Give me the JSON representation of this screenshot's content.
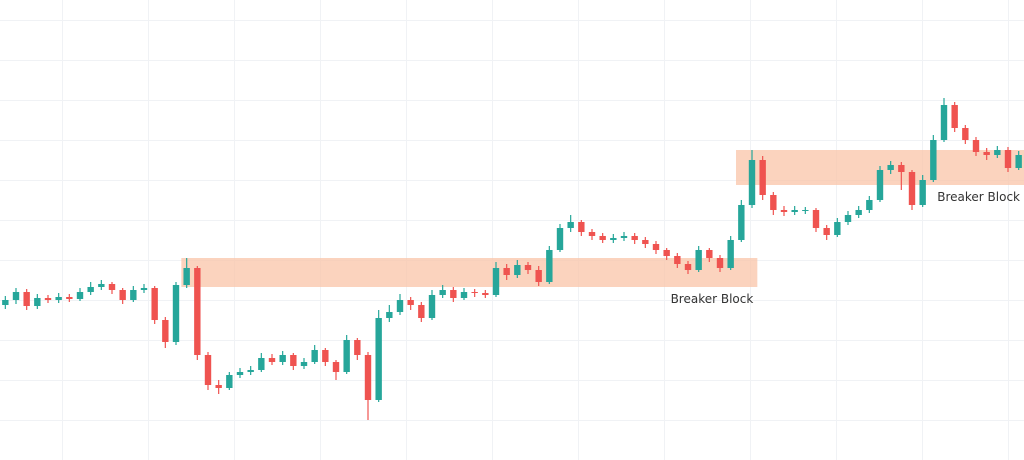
{
  "chart_data": {
    "type": "candlestick",
    "ylim": [
      0,
      460
    ],
    "up_color": "#26a69a",
    "down_color": "#ef5350",
    "open": [
      155,
      160,
      168,
      154,
      162,
      160,
      163,
      161,
      168,
      173,
      176,
      170,
      160,
      170,
      172,
      140,
      118,
      175,
      192,
      105,
      75,
      72,
      85,
      88,
      90,
      102,
      98,
      105,
      94,
      98,
      110,
      98,
      88,
      120,
      105,
      60,
      142,
      148,
      160,
      155,
      142,
      165,
      170,
      162,
      168,
      167,
      165,
      192,
      185,
      195,
      190,
      178,
      210,
      232,
      238,
      228,
      224,
      220,
      222,
      224,
      220,
      216,
      210,
      204,
      196,
      190,
      210,
      202,
      192,
      220,
      255,
      300,
      265,
      250,
      248,
      250,
      250,
      232,
      225,
      238,
      245,
      250,
      260,
      290,
      295,
      288,
      255,
      280,
      320,
      355,
      332,
      320,
      308,
      305,
      310,
      292
    ],
    "high": [
      164,
      172,
      171,
      166,
      165,
      167,
      166,
      172,
      178,
      180,
      178,
      172,
      174,
      176,
      174,
      143,
      178,
      202,
      194,
      108,
      80,
      88,
      92,
      94,
      107,
      106,
      109,
      107,
      102,
      115,
      112,
      100,
      125,
      122,
      108,
      150,
      155,
      166,
      163,
      158,
      170,
      175,
      173,
      172,
      171,
      170,
      198,
      196,
      200,
      198,
      194,
      214,
      236,
      245,
      240,
      231,
      227,
      226,
      228,
      227,
      223,
      219,
      212,
      207,
      199,
      214,
      212,
      205,
      224,
      260,
      310,
      304,
      268,
      254,
      254,
      253,
      252,
      235,
      242,
      249,
      254,
      264,
      294,
      299,
      298,
      290,
      285,
      325,
      362,
      358,
      335,
      323,
      312,
      314,
      313,
      309
    ],
    "low": [
      151,
      156,
      150,
      151,
      157,
      157,
      158,
      159,
      165,
      170,
      166,
      156,
      158,
      167,
      136,
      112,
      115,
      172,
      100,
      70,
      66,
      70,
      82,
      85,
      88,
      95,
      95,
      90,
      91,
      96,
      94,
      80,
      86,
      100,
      40,
      58,
      138,
      145,
      150,
      138,
      140,
      162,
      158,
      160,
      163,
      162,
      163,
      180,
      182,
      186,
      174,
      176,
      208,
      228,
      224,
      220,
      217,
      217,
      219,
      216,
      212,
      206,
      200,
      192,
      186,
      188,
      198,
      188,
      190,
      218,
      252,
      260,
      245,
      244,
      245,
      246,
      228,
      220,
      223,
      235,
      242,
      247,
      258,
      286,
      270,
      250,
      253,
      278,
      318,
      328,
      316,
      304,
      300,
      302,
      288,
      290
    ],
    "close": [
      160,
      168,
      154,
      162,
      160,
      163,
      161,
      168,
      173,
      176,
      170,
      160,
      170,
      172,
      140,
      118,
      175,
      192,
      105,
      75,
      72,
      85,
      88,
      90,
      102,
      98,
      105,
      94,
      98,
      110,
      98,
      88,
      120,
      105,
      60,
      142,
      148,
      160,
      155,
      142,
      165,
      170,
      162,
      168,
      167,
      165,
      192,
      185,
      195,
      190,
      178,
      210,
      232,
      238,
      228,
      224,
      220,
      222,
      224,
      220,
      216,
      210,
      204,
      196,
      190,
      210,
      202,
      192,
      220,
      255,
      300,
      265,
      250,
      248,
      250,
      250,
      232,
      225,
      238,
      245,
      250,
      260,
      290,
      295,
      288,
      255,
      280,
      320,
      355,
      332,
      320,
      308,
      305,
      310,
      292,
      305
    ],
    "zones": [
      {
        "start": 17,
        "end": 70,
        "top": 202,
        "bottom": 173,
        "label": "Breaker Block"
      },
      {
        "start": 69,
        "end": 95,
        "top": 310,
        "bottom": 275,
        "label": "Breaker Block"
      }
    ],
    "zone_color": "#f9c4a8"
  }
}
